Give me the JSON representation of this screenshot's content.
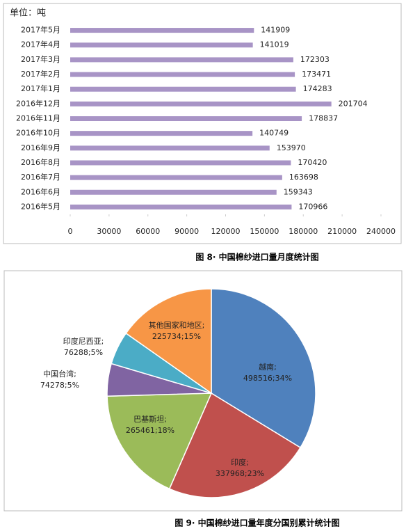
{
  "chart_data": [
    {
      "type": "barh",
      "unit": "单位：吨",
      "caption": "图 8· 中国棉纱进口量月度统计图",
      "categories": [
        "2017年5月",
        "2017年4月",
        "2017年3月",
        "2017年2月",
        "2017年1月",
        "2016年12月",
        "2016年11月",
        "2016年10月",
        "2016年9月",
        "2016年8月",
        "2016年7月",
        "2016年6月",
        "2016年5月"
      ],
      "values": [
        141909,
        141019,
        172303,
        173471,
        174283,
        201704,
        178837,
        140749,
        153970,
        170420,
        163698,
        159343,
        170966
      ],
      "color": "#a894c6",
      "xlim": [
        0,
        240000
      ],
      "xticks": [
        0,
        30000,
        60000,
        90000,
        120000,
        150000,
        180000,
        210000,
        240000
      ]
    },
    {
      "type": "pie",
      "caption": "图 9· 中国棉纱进口量年度分国别累计统计图",
      "categories": [
        "越南",
        "印度",
        "巴基斯坦",
        "中国台湾",
        "印度尼西亚",
        "其他国家和地区"
      ],
      "values": [
        498516,
        337968,
        265461,
        74278,
        76288,
        225734
      ],
      "percent_labels": [
        "34%",
        "23%",
        "18%",
        "5%",
        "5%",
        "15%"
      ],
      "label_separator": ";",
      "colors": [
        "#4f81bd",
        "#c0504d",
        "#9bbb59",
        "#8064a2",
        "#4bacc6",
        "#f79646"
      ]
    }
  ]
}
